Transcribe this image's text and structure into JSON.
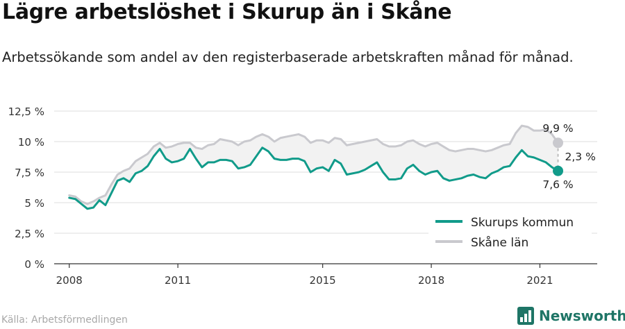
{
  "header": {
    "title": "Lägre arbetslöshet i Skurup än i Skåne",
    "subtitle": "Arbetssökande som andel av den registerbaserade arbetskraften månad för månad."
  },
  "footer": {
    "source": "Källa: Arbetsförmedlingen",
    "brand": "Newsworthy"
  },
  "colors": {
    "skurup": "#119b8a",
    "skane": "#c9c9ce",
    "band": "#f2f2f2",
    "grid": "#dddddd",
    "brand": "#1e7566"
  },
  "chart_data": {
    "type": "line",
    "title": "Lägre arbetslöshet i Skurup än i Skåne",
    "x_ticks": [
      "2008",
      "2011",
      "2015",
      "2018",
      "2021"
    ],
    "y_ticks": [
      "0 %",
      "2,5 %",
      "5 %",
      "7,5 %",
      "10 %",
      "12,5 %"
    ],
    "ylim": [
      0,
      12.5
    ],
    "xlim": [
      "2007-08",
      "2022-08"
    ],
    "grid": true,
    "legend_position": "bottom-right",
    "series": [
      {
        "name": "Skurups kommun",
        "color": "#119b8a",
        "points": [
          [
            "2008-01",
            5.4
          ],
          [
            "2008-03",
            5.3
          ],
          [
            "2008-05",
            4.9
          ],
          [
            "2008-07",
            4.5
          ],
          [
            "2008-09",
            4.6
          ],
          [
            "2008-11",
            5.2
          ],
          [
            "2009-01",
            4.8
          ],
          [
            "2009-03",
            5.8
          ],
          [
            "2009-05",
            6.8
          ],
          [
            "2009-07",
            7.0
          ],
          [
            "2009-09",
            6.7
          ],
          [
            "2009-11",
            7.4
          ],
          [
            "2010-01",
            7.6
          ],
          [
            "2010-03",
            8.0
          ],
          [
            "2010-05",
            8.8
          ],
          [
            "2010-07",
            9.4
          ],
          [
            "2010-09",
            8.6
          ],
          [
            "2010-11",
            8.3
          ],
          [
            "2011-01",
            8.4
          ],
          [
            "2011-03",
            8.6
          ],
          [
            "2011-05",
            9.4
          ],
          [
            "2011-07",
            8.6
          ],
          [
            "2011-09",
            7.9
          ],
          [
            "2011-11",
            8.3
          ],
          [
            "2012-01",
            8.3
          ],
          [
            "2012-03",
            8.5
          ],
          [
            "2012-05",
            8.5
          ],
          [
            "2012-07",
            8.4
          ],
          [
            "2012-09",
            7.8
          ],
          [
            "2012-11",
            7.9
          ],
          [
            "2013-01",
            8.1
          ],
          [
            "2013-03",
            8.8
          ],
          [
            "2013-05",
            9.5
          ],
          [
            "2013-07",
            9.2
          ],
          [
            "2013-09",
            8.6
          ],
          [
            "2013-11",
            8.5
          ],
          [
            "2014-01",
            8.5
          ],
          [
            "2014-03",
            8.6
          ],
          [
            "2014-05",
            8.6
          ],
          [
            "2014-07",
            8.4
          ],
          [
            "2014-09",
            7.5
          ],
          [
            "2014-11",
            7.8
          ],
          [
            "2015-01",
            7.9
          ],
          [
            "2015-03",
            7.6
          ],
          [
            "2015-05",
            8.5
          ],
          [
            "2015-07",
            8.2
          ],
          [
            "2015-09",
            7.3
          ],
          [
            "2015-11",
            7.4
          ],
          [
            "2016-01",
            7.5
          ],
          [
            "2016-03",
            7.7
          ],
          [
            "2016-05",
            8.0
          ],
          [
            "2016-07",
            8.3
          ],
          [
            "2016-09",
            7.5
          ],
          [
            "2016-11",
            6.9
          ],
          [
            "2017-01",
            6.9
          ],
          [
            "2017-03",
            7.0
          ],
          [
            "2017-05",
            7.8
          ],
          [
            "2017-07",
            8.1
          ],
          [
            "2017-09",
            7.6
          ],
          [
            "2017-11",
            7.3
          ],
          [
            "2018-01",
            7.5
          ],
          [
            "2018-03",
            7.6
          ],
          [
            "2018-05",
            7.0
          ],
          [
            "2018-07",
            6.8
          ],
          [
            "2018-09",
            6.9
          ],
          [
            "2018-11",
            7.0
          ],
          [
            "2019-01",
            7.2
          ],
          [
            "2019-03",
            7.3
          ],
          [
            "2019-05",
            7.1
          ],
          [
            "2019-07",
            7.0
          ],
          [
            "2019-09",
            7.4
          ],
          [
            "2019-11",
            7.6
          ],
          [
            "2020-01",
            7.9
          ],
          [
            "2020-03",
            8.0
          ],
          [
            "2020-05",
            8.7
          ],
          [
            "2020-07",
            9.3
          ],
          [
            "2020-09",
            8.8
          ],
          [
            "2020-11",
            8.7
          ],
          [
            "2021-01",
            8.5
          ],
          [
            "2021-03",
            8.3
          ],
          [
            "2021-05",
            7.9
          ],
          [
            "2021-07",
            7.6
          ]
        ]
      },
      {
        "name": "Skåne län",
        "color": "#c9c9ce",
        "points": [
          [
            "2008-01",
            5.6
          ],
          [
            "2008-03",
            5.5
          ],
          [
            "2008-05",
            5.1
          ],
          [
            "2008-07",
            4.9
          ],
          [
            "2008-09",
            5.1
          ],
          [
            "2008-11",
            5.4
          ],
          [
            "2009-01",
            5.6
          ],
          [
            "2009-03",
            6.5
          ],
          [
            "2009-05",
            7.3
          ],
          [
            "2009-07",
            7.6
          ],
          [
            "2009-09",
            7.8
          ],
          [
            "2009-11",
            8.4
          ],
          [
            "2010-01",
            8.7
          ],
          [
            "2010-03",
            9.0
          ],
          [
            "2010-05",
            9.6
          ],
          [
            "2010-07",
            9.9
          ],
          [
            "2010-09",
            9.5
          ],
          [
            "2010-11",
            9.6
          ],
          [
            "2011-01",
            9.8
          ],
          [
            "2011-03",
            9.9
          ],
          [
            "2011-05",
            9.9
          ],
          [
            "2011-07",
            9.5
          ],
          [
            "2011-09",
            9.4
          ],
          [
            "2011-11",
            9.7
          ],
          [
            "2012-01",
            9.8
          ],
          [
            "2012-03",
            10.2
          ],
          [
            "2012-05",
            10.1
          ],
          [
            "2012-07",
            10.0
          ],
          [
            "2012-09",
            9.7
          ],
          [
            "2012-11",
            10.0
          ],
          [
            "2013-01",
            10.1
          ],
          [
            "2013-03",
            10.4
          ],
          [
            "2013-05",
            10.6
          ],
          [
            "2013-07",
            10.4
          ],
          [
            "2013-09",
            10.0
          ],
          [
            "2013-11",
            10.3
          ],
          [
            "2014-01",
            10.4
          ],
          [
            "2014-03",
            10.5
          ],
          [
            "2014-05",
            10.6
          ],
          [
            "2014-07",
            10.4
          ],
          [
            "2014-09",
            9.9
          ],
          [
            "2014-11",
            10.1
          ],
          [
            "2015-01",
            10.1
          ],
          [
            "2015-03",
            9.9
          ],
          [
            "2015-05",
            10.3
          ],
          [
            "2015-07",
            10.2
          ],
          [
            "2015-09",
            9.7
          ],
          [
            "2015-11",
            9.8
          ],
          [
            "2016-01",
            9.9
          ],
          [
            "2016-03",
            10.0
          ],
          [
            "2016-05",
            10.1
          ],
          [
            "2016-07",
            10.2
          ],
          [
            "2016-09",
            9.8
          ],
          [
            "2016-11",
            9.6
          ],
          [
            "2017-01",
            9.6
          ],
          [
            "2017-03",
            9.7
          ],
          [
            "2017-05",
            10.0
          ],
          [
            "2017-07",
            10.1
          ],
          [
            "2017-09",
            9.8
          ],
          [
            "2017-11",
            9.6
          ],
          [
            "2018-01",
            9.8
          ],
          [
            "2018-03",
            9.9
          ],
          [
            "2018-05",
            9.6
          ],
          [
            "2018-07",
            9.3
          ],
          [
            "2018-09",
            9.2
          ],
          [
            "2018-11",
            9.3
          ],
          [
            "2019-01",
            9.4
          ],
          [
            "2019-03",
            9.4
          ],
          [
            "2019-05",
            9.3
          ],
          [
            "2019-07",
            9.2
          ],
          [
            "2019-09",
            9.3
          ],
          [
            "2019-11",
            9.5
          ],
          [
            "2020-01",
            9.7
          ],
          [
            "2020-03",
            9.8
          ],
          [
            "2020-05",
            10.7
          ],
          [
            "2020-07",
            11.3
          ],
          [
            "2020-09",
            11.2
          ],
          [
            "2020-11",
            10.9
          ],
          [
            "2021-01",
            10.9
          ],
          [
            "2021-03",
            11.0
          ],
          [
            "2021-05",
            10.6
          ],
          [
            "2021-07",
            9.9
          ]
        ]
      }
    ],
    "annotations": {
      "skane_end": "9,9 %",
      "skurup_end": "7,6 %",
      "difference": "2,3 %"
    }
  }
}
